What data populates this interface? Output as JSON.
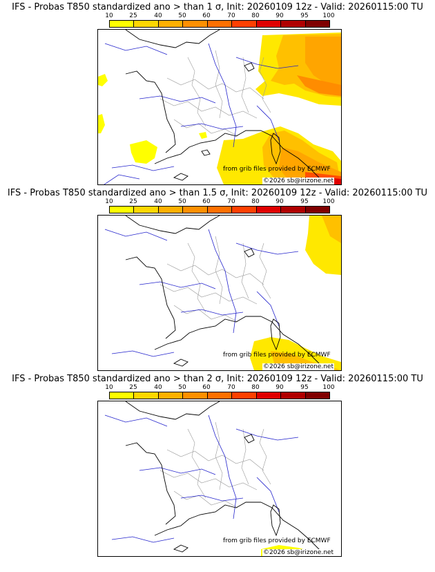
{
  "panels": [
    {
      "title": "IFS - Probas T850  standardized ano > than 1 σ, Init: 20260109 12z - Valid: 20260115:00 TU",
      "threshold": "1 σ",
      "credit_source": "from grib files provided by ECMWF",
      "credit_copyright": "©2026 sb@irizone.net"
    },
    {
      "title": "IFS - Probas T850  standardized ano > than 1.5 σ, Init: 20260109 12z - Valid: 20260115:00 TU",
      "threshold": "1.5 σ",
      "credit_source": "from grib files provided by ECMWF",
      "credit_copyright": "©2026 sb@irizone.net"
    },
    {
      "title": "IFS - Probas T850  standardized ano > than 2 σ, Init: 20260109 12z - Valid: 20260115:00 TU",
      "threshold": "2 σ",
      "credit_source": "from grib files provided by ECMWF",
      "credit_copyright": "©2026 sb@irizone.net"
    }
  ],
  "colorbar": {
    "ticks": [
      "10",
      "25",
      "40",
      "50",
      "60",
      "70",
      "80",
      "90",
      "95",
      "100"
    ],
    "colors": [
      "#ffff00",
      "#ffd700",
      "#ffb000",
      "#ff9000",
      "#ff7000",
      "#ff4000",
      "#e00000",
      "#b00000",
      "#800000"
    ]
  },
  "colors": {
    "coast": "#000000",
    "rivers": "#2222cc",
    "borders": "#999999"
  }
}
